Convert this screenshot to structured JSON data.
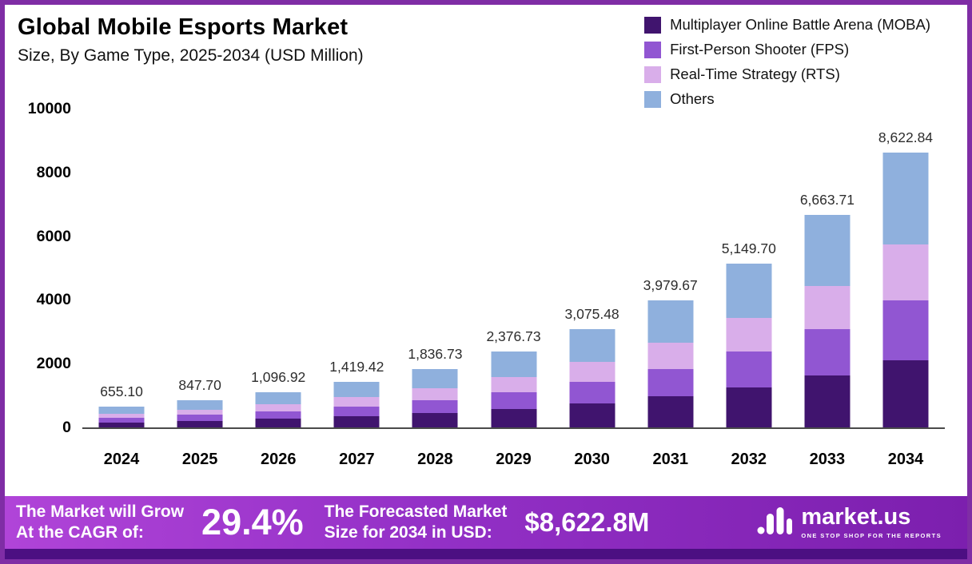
{
  "title": "Global Mobile Esports Market",
  "subtitle": "Size, By Game Type, 2025-2034 (USD Million)",
  "legend": [
    {
      "label": "Multiplayer Online Battle Arena (MOBA)",
      "color": "#40146e"
    },
    {
      "label": "First-Person Shooter (FPS)",
      "color": "#9156d2"
    },
    {
      "label": "Real-Time Strategy (RTS)",
      "color": "#d9aeea"
    },
    {
      "label": "Others",
      "color": "#8fb0dd"
    }
  ],
  "chart_data": {
    "type": "bar",
    "stacked": true,
    "title": "Global Mobile Esports Market Size, By Game Type, 2025-2034 (USD Million)",
    "xlabel": "",
    "ylabel": "",
    "ylim": [
      0,
      10000
    ],
    "yticks": [
      0,
      2000,
      4000,
      6000,
      8000,
      10000
    ],
    "ytick_labels": [
      "0",
      "2000",
      "4000",
      "6000",
      "8000",
      "10000"
    ],
    "grid": false,
    "legend_position": "top-right",
    "categories": [
      "2024",
      "2025",
      "2026",
      "2027",
      "2028",
      "2029",
      "2030",
      "2031",
      "2032",
      "2033",
      "2034"
    ],
    "totals": [
      655.1,
      847.7,
      1096.92,
      1419.42,
      1836.73,
      2376.73,
      3075.48,
      3979.67,
      5149.7,
      6663.71,
      8622.84
    ],
    "total_labels": [
      "655.10",
      "847.70",
      "1,096.92",
      "1,419.42",
      "1,836.73",
      "2,376.73",
      "3,075.48",
      "3,979.67",
      "5,149.70",
      "6,663.71",
      "8,622.84"
    ],
    "series": [
      {
        "key": "moba",
        "name": "Multiplayer Online Battle Arena (MOBA)",
        "color": "#40146e",
        "values": [
          159.2,
          206.0,
          266.6,
          344.9,
          446.3,
          577.5,
          747.3,
          967.1,
          1251.4,
          1619.3,
          2095.4
        ]
      },
      {
        "key": "fps",
        "name": "First-Person Shooter (FPS)",
        "color": "#9156d2",
        "values": [
          144.1,
          186.5,
          241.3,
          312.3,
          404.1,
          522.9,
          676.6,
          875.5,
          1132.9,
          1466.0,
          1897.0
        ]
      },
      {
        "key": "rts",
        "name": "Real-Time Strategy (RTS)",
        "color": "#d9aeea",
        "values": [
          133.0,
          172.1,
          222.7,
          288.1,
          372.9,
          482.5,
          624.3,
          807.9,
          1045.4,
          1352.7,
          1750.4
        ]
      },
      {
        "key": "others",
        "name": "Others",
        "color": "#8fb0dd",
        "values": [
          218.8,
          283.1,
          366.4,
          474.1,
          613.5,
          793.8,
          1027.2,
          1329.2,
          1720.0,
          2225.7,
          2880.0
        ]
      }
    ]
  },
  "footer": {
    "left_line1": "The Market will Grow",
    "left_line2": "At the CAGR of:",
    "cagr": "29.4%",
    "mid_line1": "The Forecasted Market",
    "mid_line2": "Size for 2034 in USD:",
    "forecast": "$8,622.8M",
    "brand": "market.us",
    "tagline": "ONE STOP SHOP FOR THE REPORTS"
  }
}
